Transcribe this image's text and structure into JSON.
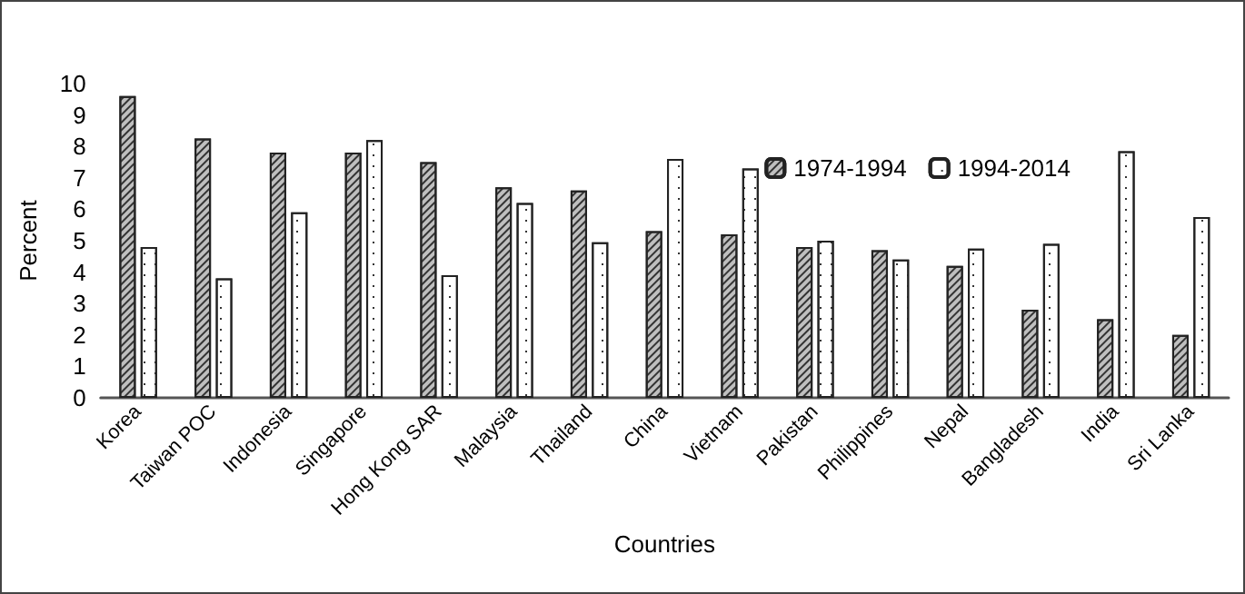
{
  "chart_data": {
    "type": "bar",
    "xlabel": "Countries",
    "ylabel": "Percent",
    "categories": [
      "Korea",
      "Taiwan POC",
      "Indonesia",
      "Singapore",
      "Hong Kong SAR",
      "Malaysia",
      "Thailand",
      "China",
      "Vietnam",
      "Pakistan",
      "Philippines",
      "Nepal",
      "Bangladesh",
      "India",
      "Sri Lanka"
    ],
    "series": [
      {
        "name": "1974-1994",
        "color": "#bfbfbf",
        "values": [
          9.6,
          8.25,
          7.8,
          7.8,
          7.5,
          6.7,
          6.6,
          5.3,
          5.2,
          4.8,
          4.7,
          4.2,
          2.8,
          2.5,
          2.0
        ]
      },
      {
        "name": "1994-2014",
        "color": "#ffffff",
        "values": [
          4.8,
          3.8,
          5.9,
          8.2,
          3.9,
          6.2,
          4.95,
          7.6,
          7.3,
          5.0,
          4.4,
          4.75,
          4.9,
          7.85,
          5.75
        ]
      }
    ],
    "ylim": [
      0,
      10
    ],
    "yticks": [
      0,
      1,
      2,
      3,
      4,
      5,
      6,
      7,
      8,
      9,
      10
    ],
    "grid": false,
    "legend": "top right"
  }
}
